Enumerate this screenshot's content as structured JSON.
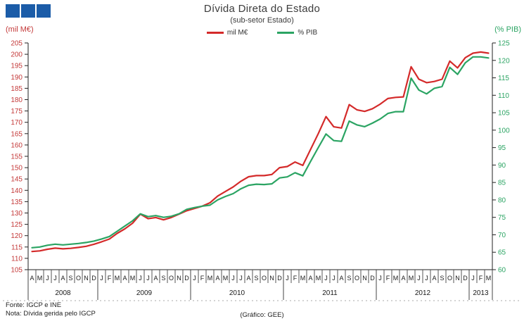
{
  "logo": {
    "color": "#1b5ca8",
    "squares": 3
  },
  "header": {
    "title": "Dívida Direta do Estado",
    "subtitle": "(sub-setor  Estado)"
  },
  "legend": [
    {
      "label": "mil M€",
      "color": "#d42a2a"
    },
    {
      "label": "% PIB",
      "color": "#2ba463"
    }
  ],
  "footer": {
    "fonte": "Fonte: IGCP e INE",
    "nota": "Nota: Dívida  gerida  pelo IGCP",
    "grafico": "(Gráfico:  GEE)"
  },
  "chart_data": {
    "type": "line",
    "title": "Dívida Direta do Estado",
    "subtitle": "(sub-setor Estado)",
    "grid": false,
    "legend_position": "top",
    "left_axis": {
      "label": "(mil M€)",
      "color": "#c43a3a",
      "min": 105,
      "max": 205,
      "step": 5
    },
    "right_axis": {
      "label": "(% PIB)",
      "color": "#2ba463",
      "min": 60,
      "max": 125,
      "step": 5
    },
    "x_period": "Apr 2008 - Mar 2013 (monthly)",
    "years": [
      {
        "label": "2008",
        "months": [
          "A",
          "M",
          "J",
          "J",
          "A",
          "S",
          "O",
          "N",
          "D"
        ]
      },
      {
        "label": "2009",
        "months": [
          "J",
          "F",
          "M",
          "A",
          "M",
          "J",
          "J",
          "A",
          "S",
          "O",
          "N",
          "D"
        ]
      },
      {
        "label": "2010",
        "months": [
          "J",
          "F",
          "M",
          "A",
          "M",
          "J",
          "J",
          "A",
          "S",
          "O",
          "N",
          "D"
        ]
      },
      {
        "label": "2011",
        "months": [
          "J",
          "F",
          "M",
          "A",
          "M",
          "J",
          "J",
          "A",
          "S",
          "O",
          "N",
          "D"
        ]
      },
      {
        "label": "2012",
        "months": [
          "J",
          "F",
          "M",
          "A",
          "M",
          "J",
          "J",
          "A",
          "S",
          "O",
          "N",
          "D"
        ]
      },
      {
        "label": "2013",
        "months": [
          "J",
          "F",
          "M"
        ]
      }
    ],
    "series": [
      {
        "name": "mil M€",
        "axis": "left",
        "color": "#d42a2a",
        "values": [
          113,
          113.3,
          114,
          114.5,
          114.2,
          114.4,
          114.8,
          115.3,
          116.2,
          117.3,
          118.5,
          121,
          123,
          125.5,
          129.5,
          127.5,
          128,
          127,
          128,
          129.5,
          131,
          132,
          133,
          134.5,
          137.5,
          139.5,
          141.5,
          144,
          146,
          146.5,
          146.5,
          147,
          150,
          150.5,
          152.5,
          151,
          158,
          165,
          172.5,
          168,
          167.5,
          177.8,
          175.5,
          174.8,
          176,
          178,
          180.5,
          181,
          181.2,
          194.5,
          189,
          187.5,
          188,
          189,
          197,
          194,
          198.5,
          200.5,
          201,
          200.5
        ]
      },
      {
        "name": "% PIB",
        "axis": "right",
        "color": "#2ba463",
        "values": [
          66.3,
          66.5,
          67,
          67.3,
          67.1,
          67.3,
          67.5,
          67.8,
          68.2,
          68.8,
          69.5,
          71,
          72.5,
          74,
          76,
          75.2,
          75.5,
          75,
          75.3,
          76,
          77.3,
          77.8,
          78.2,
          78.5,
          80,
          81,
          81.8,
          83.2,
          84.2,
          84.5,
          84.4,
          84.6,
          86.3,
          86.6,
          87.8,
          86.9,
          91,
          95,
          98.9,
          97,
          96.8,
          102.6,
          101.5,
          101,
          102,
          103.2,
          104.8,
          105.3,
          105.3,
          114.9,
          111.5,
          110.4,
          112,
          112.5,
          118,
          116,
          119.3,
          121,
          121,
          120.7
        ]
      }
    ]
  }
}
